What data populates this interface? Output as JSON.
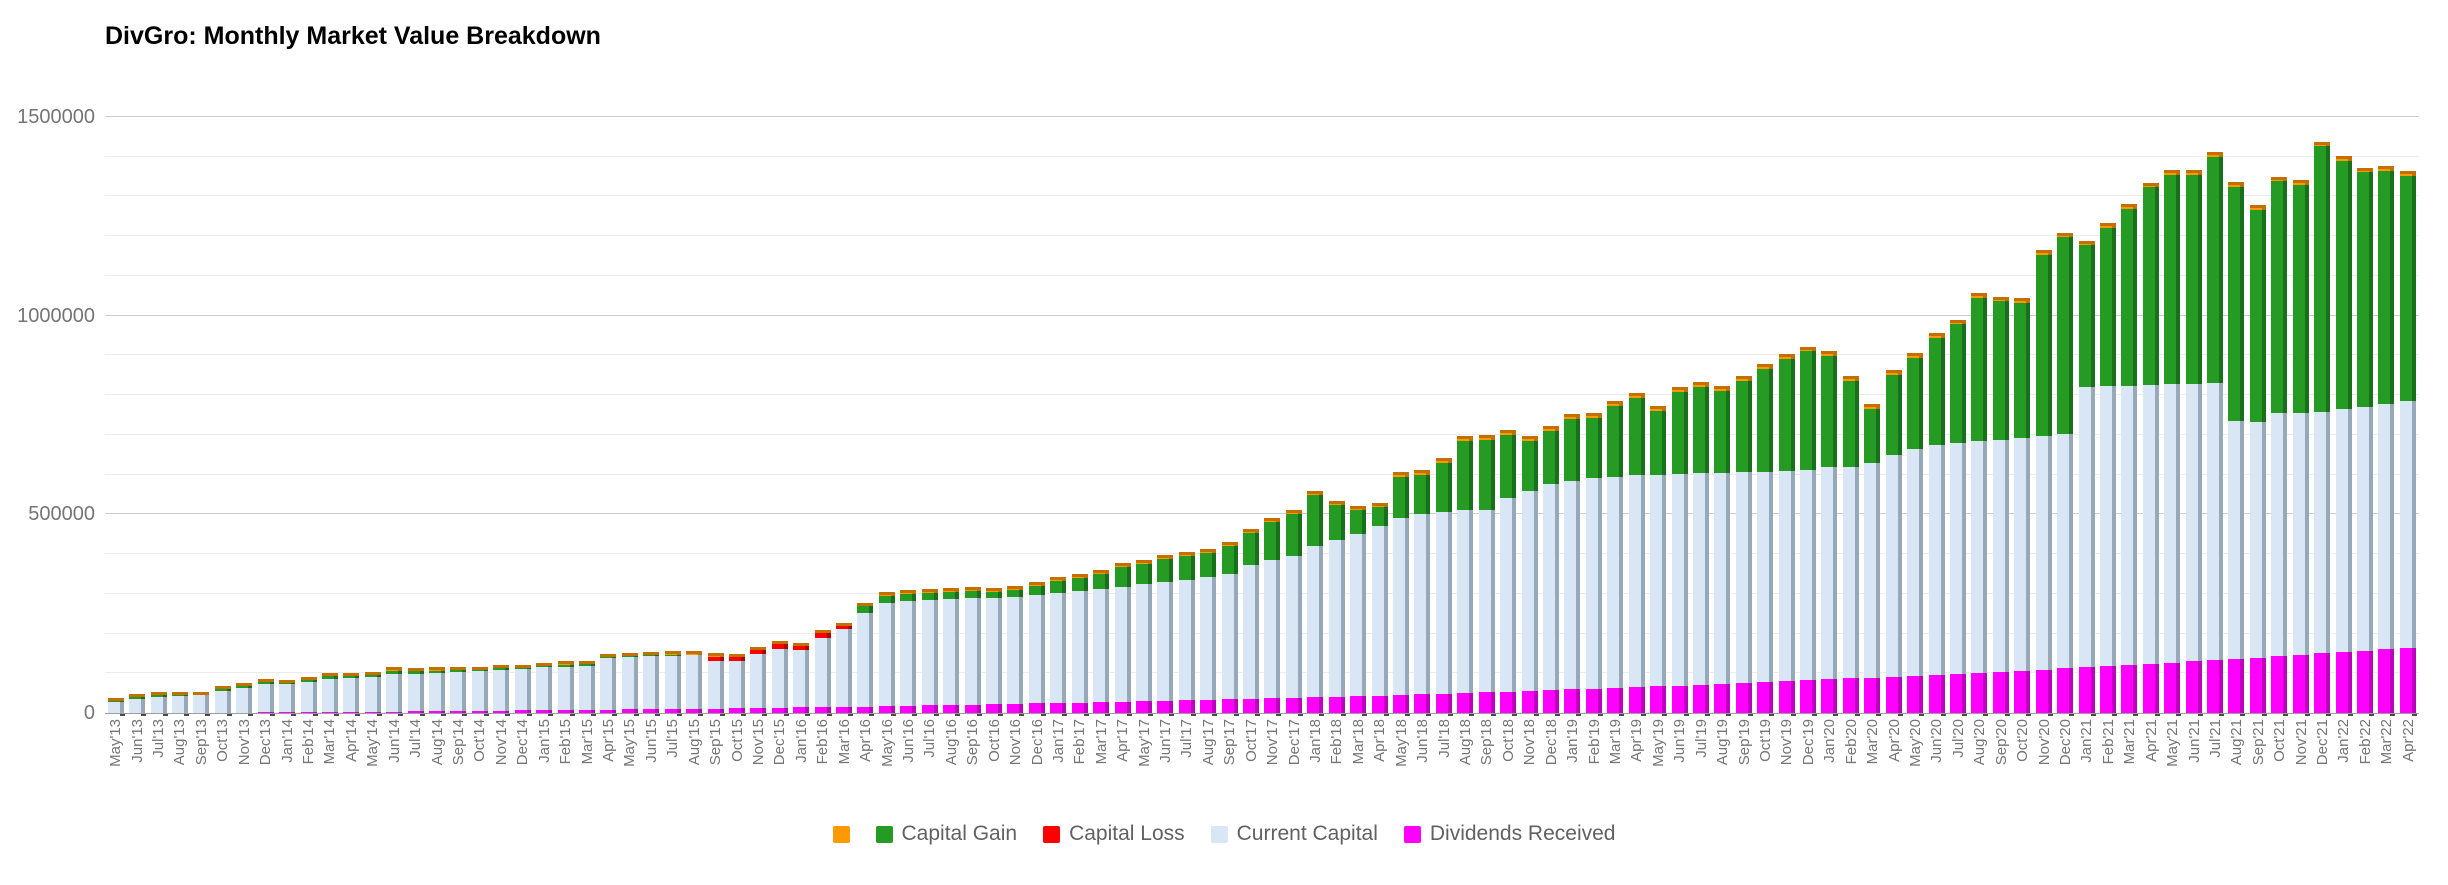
{
  "chart_data": {
    "type": "bar",
    "stacked": true,
    "title": "DivGro: Monthly Market Value Breakdown",
    "xlabel": "",
    "ylabel": "",
    "ylim": [
      0,
      1500000
    ],
    "y_major_ticks": [
      0,
      500000,
      1000000,
      1500000
    ],
    "y_minor_step": 100000,
    "grid": true,
    "legend_position": "bottom",
    "categories": [
      "May'13",
      "Jun'13",
      "Jul'13",
      "Aug'13",
      "Sep'13",
      "Oct'13",
      "Nov'13",
      "Dec'13",
      "Jan'14",
      "Feb'14",
      "Mar'14",
      "Apr'14",
      "May'14",
      "Jun'14",
      "Jul'14",
      "Aug'14",
      "Sep'14",
      "Oct'14",
      "Nov'14",
      "Dec'14",
      "Jan'15",
      "Feb'15",
      "Mar'15",
      "Apr'15",
      "May'15",
      "Jun'15",
      "Jul'15",
      "Aug'15",
      "Sep'15",
      "Oct'15",
      "Nov'15",
      "Dec'15",
      "Jan'16",
      "Feb'16",
      "Mar'16",
      "Apr'16",
      "May'16",
      "Jun'16",
      "Jul'16",
      "Aug'16",
      "Sep'16",
      "Oct'16",
      "Nov'16",
      "Dec'16",
      "Jan'17",
      "Feb'17",
      "Mar'17",
      "Apr'17",
      "May'17",
      "Jun'17",
      "Jul'17",
      "Aug'17",
      "Sep'17",
      "Oct'17",
      "Nov'17",
      "Dec'17",
      "Jan'18",
      "Feb'18",
      "Mar'18",
      "Apr'18",
      "May'18",
      "Jun'18",
      "Jul'18",
      "Aug'18",
      "Sep'18",
      "Oct'18",
      "Nov'18",
      "Dec'18",
      "Jan'19",
      "Feb'19",
      "Mar'19",
      "Apr'19",
      "May'19",
      "Jun'19",
      "Jul'19",
      "Aug'19",
      "Sep'19",
      "Oct'19",
      "Nov'19",
      "Dec'19",
      "Jan'20",
      "Feb'20",
      "Mar'20",
      "Apr'20",
      "May'20",
      "Jun'20",
      "Jul'20",
      "Aug'20",
      "Sep'20",
      "Oct'20",
      "Nov'20",
      "Dec'20",
      "Jan'21",
      "Feb'21",
      "Mar'21",
      "Apr'21",
      "May'21",
      "Jun'21",
      "Jul'21",
      "Aug'21",
      "Sep'21",
      "Oct'21",
      "Nov'21",
      "Dec'21",
      "Jan'22",
      "Feb'22",
      "Mar'22",
      "Apr'22"
    ],
    "series": [
      {
        "name": "",
        "key": "cash",
        "color": "#ff9900",
        "side_color": "#c47000",
        "values": [
          8000,
          8000,
          8000,
          8000,
          8000,
          8000,
          8000,
          8000,
          8000,
          8000,
          8000,
          8000,
          8000,
          8000,
          8000,
          8000,
          8000,
          8000,
          8000,
          8000,
          8000,
          8000,
          8000,
          8000,
          8000,
          8000,
          8000,
          8000,
          8000,
          8000,
          8000,
          8000,
          8000,
          8000,
          8000,
          8000,
          10000,
          10000,
          10000,
          10000,
          10000,
          10000,
          10000,
          10000,
          10000,
          10000,
          10000,
          10000,
          10000,
          10000,
          10000,
          10000,
          10000,
          10000,
          10000,
          10000,
          10000,
          10000,
          10000,
          10000,
          12000,
          12000,
          12000,
          12000,
          12000,
          12000,
          12000,
          12000,
          12000,
          12000,
          12000,
          12000,
          12000,
          12000,
          12000,
          12000,
          12000,
          12000,
          12000,
          12000,
          12000,
          12000,
          12000,
          12000,
          12000,
          12000,
          12000,
          12000,
          12000,
          12000,
          12000,
          12000,
          12000,
          12000,
          12000,
          12000,
          12000,
          12000,
          12000,
          12000,
          12000,
          12000,
          12000,
          12000,
          12000,
          12000,
          12000,
          12000
        ]
      },
      {
        "name": "Capital Gain",
        "key": "gain",
        "color": "#259b24",
        "side_color": "#18701a",
        "values": [
          2000,
          5000,
          5000,
          3000,
          1000,
          4000,
          4000,
          5000,
          4000,
          4000,
          7000,
          4000,
          5000,
          10000,
          7000,
          6000,
          5000,
          3000,
          4000,
          2000,
          3000,
          5000,
          5000,
          1000,
          3000,
          3000,
          3000,
          1000,
          0,
          0,
          0,
          0,
          0,
          0,
          0,
          18000,
          18000,
          17000,
          17000,
          18000,
          19000,
          15000,
          18000,
          22000,
          31000,
          34000,
          38000,
          49000,
          51000,
          58000,
          59000,
          60000,
          70000,
          80000,
          97000,
          106000,
          129000,
          89000,
          62000,
          49000,
          103000,
          99000,
          124000,
          175000,
          176000,
          160000,
          125000,
          133000,
          156000,
          152000,
          178000,
          196000,
          161000,
          206000,
          216000,
          206000,
          229000,
          259000,
          282000,
          299000,
          280000,
          216000,
          136000,
          201000,
          229000,
          269000,
          298000,
          360000,
          348000,
          340000,
          456000,
          495000,
          357000,
          400000,
          445000,
          497000,
          528000,
          527000,
          569000,
          591000,
          533000,
          583000,
          573000,
          669000,
          625000,
          591000,
          587000,
          567000
        ]
      },
      {
        "name": "Capital Loss",
        "key": "loss",
        "color": "#ff0000",
        "side_color": "#b30000",
        "values": [
          0,
          0,
          0,
          0,
          0,
          0,
          0,
          0,
          0,
          0,
          0,
          0,
          0,
          0,
          0,
          0,
          0,
          0,
          0,
          0,
          0,
          0,
          0,
          0,
          0,
          0,
          0,
          0,
          12000,
          11000,
          11000,
          14000,
          11000,
          11000,
          6000,
          0,
          0,
          0,
          0,
          0,
          0,
          0,
          0,
          0,
          0,
          0,
          0,
          0,
          0,
          0,
          0,
          0,
          0,
          0,
          0,
          0,
          0,
          0,
          0,
          0,
          0,
          0,
          0,
          0,
          0,
          0,
          0,
          0,
          0,
          0,
          0,
          0,
          0,
          0,
          0,
          0,
          0,
          0,
          0,
          0,
          0,
          0,
          0,
          0,
          0,
          0,
          0,
          0,
          0,
          0,
          0,
          0,
          0,
          0,
          0,
          0,
          0,
          0,
          0,
          0,
          0,
          0,
          0,
          0,
          0,
          0,
          0,
          0
        ]
      },
      {
        "name": "Current Capital",
        "key": "capital",
        "color": "#d8e6f6",
        "side_color": "#97a8b8",
        "values": [
          27900,
          34800,
          40700,
          41500,
          44300,
          55100,
          61800,
          70500,
          70200,
          76900,
          82500,
          85100,
          87700,
          93200,
          93800,
          96300,
          98900,
          100500,
          103000,
          105500,
          108000,
          109600,
          111100,
          130600,
          132100,
          133500,
          134000,
          135400,
          118900,
          118300,
          135600,
          146800,
          144100,
          175400,
          196600,
          235700,
          259800,
          264800,
          265900,
          267000,
          268000,
          268000,
          268900,
          273700,
          276800,
          279900,
          284800,
          289800,
          294700,
          299500,
          304400,
          309200,
          315900,
          336600,
          347200,
          356600,
          380400,
          394200,
          407700,
          426300,
          446800,
          453200,
          456700,
          460000,
          460300,
          486600,
          504700,
          519500,
          525800,
          530100,
          532100,
          533200,
          533200,
          533000,
          533000,
          531800,
          530600,
          529300,
          528900,
          528200,
          533200,
          533100,
          540700,
          558400,
          571000,
          578500,
          581000,
          583500,
          583900,
          585300,
          587500,
          589500,
          705000,
          704500,
          703500,
          702500,
          700500,
          698000,
          697000,
          598000,
          594000,
          612500,
          610000,
          607000,
          612000,
          614000,
          618000,
          621000
        ]
      },
      {
        "name": "Dividends Received",
        "key": "dividends",
        "color": "#ff00ff",
        "side_color": "#bf00bf",
        "values": [
          100,
          200,
          300,
          500,
          700,
          900,
          1200,
          1500,
          1800,
          2100,
          2500,
          2900,
          3300,
          3800,
          4200,
          4700,
          5100,
          5500,
          6000,
          6500,
          7000,
          7400,
          7900,
          8400,
          8900,
          9500,
          10000,
          10600,
          11100,
          11700,
          12400,
          13200,
          13900,
          14600,
          15400,
          16300,
          17200,
          18200,
          19100,
          20000,
          21000,
          22000,
          23100,
          24300,
          25200,
          26100,
          27200,
          28200,
          29300,
          30500,
          31600,
          32800,
          34100,
          35400,
          36800,
          38400,
          39600,
          40800,
          42300,
          43700,
          45200,
          46800,
          48300,
          50000,
          51700,
          53400,
          55300,
          57500,
          59200,
          60900,
          62900,
          64800,
          66800,
          69000,
          71000,
          73200,
          75400,
          77700,
          80100,
          82800,
          84800,
          86900,
          89300,
          91600,
          94000,
          96500,
          99000,
          101500,
          104100,
          106700,
          109500,
          112500,
          115000,
          117500,
          120500,
          123500,
          126500,
          130000,
          133000,
          136000,
          139000,
          142500,
          146000,
          150000,
          153000,
          156000,
          160000,
          164000
        ]
      }
    ],
    "stack_order_bottom_to_top": [
      "dividends",
      "capital",
      "loss",
      "gain",
      "cash"
    ],
    "legend_order": [
      "cash",
      "gain",
      "loss",
      "capital",
      "dividends"
    ]
  },
  "colors": {
    "background": "#ffffff",
    "title_text": "#000000",
    "axis_label_text": "#757575",
    "legend_text": "#616161",
    "gridline_minor": "#ececec",
    "gridline_major": "#cccccc",
    "axis_line": "#9e9e9e"
  }
}
